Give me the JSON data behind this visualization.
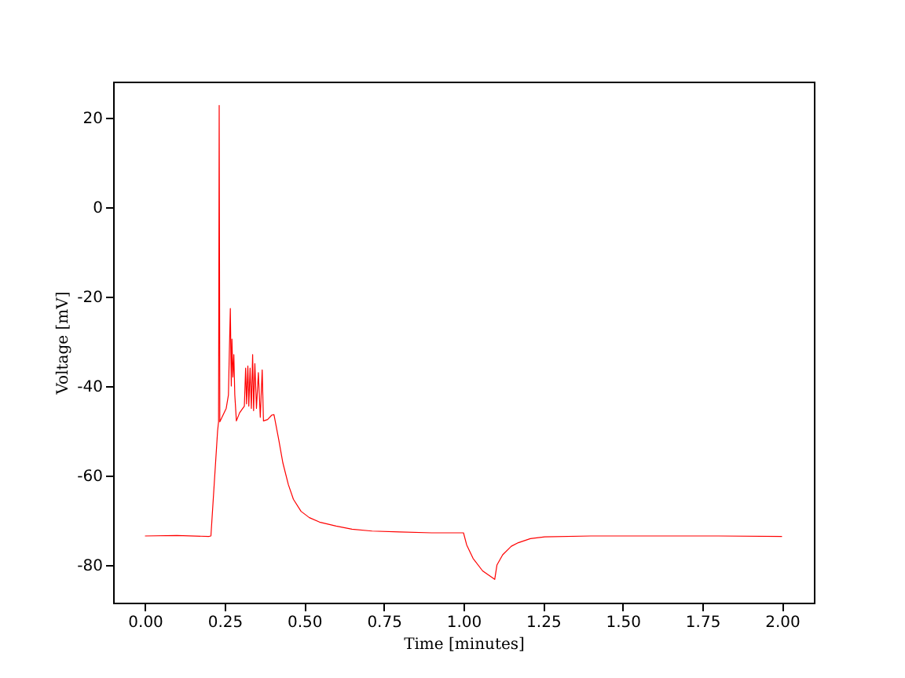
{
  "chart_data": {
    "type": "line",
    "xlabel": "Time [minutes]",
    "ylabel": "Voltage [mV]",
    "x": [
      0,
      0.1,
      0.2,
      0.207,
      0.228,
      0.231,
      0.233,
      0.235,
      0.245,
      0.255,
      0.262,
      0.265,
      0.268,
      0.271,
      0.273,
      0.276,
      0.279,
      0.282,
      0.287,
      0.297,
      0.307,
      0.312,
      0.316,
      0.319,
      0.323,
      0.326,
      0.33,
      0.334,
      0.338,
      0.341,
      0.345,
      0.35,
      0.356,
      0.362,
      0.368,
      0.372,
      0.385,
      0.398,
      0.405,
      0.42,
      0.433,
      0.45,
      0.466,
      0.49,
      0.516,
      0.548,
      0.6,
      0.65,
      0.713,
      0.8,
      0.9,
      1.0,
      1.01,
      1.03,
      1.06,
      1.098,
      1.105,
      1.123,
      1.15,
      1.172,
      1.21,
      1.255,
      1.4,
      1.6,
      1.8,
      2.0
    ],
    "series": [
      {
        "color": "#ff0000",
        "values": [
          -73.5,
          -73.4,
          -73.6,
          -73.5,
          -50,
          -48,
          22.7,
          -48,
          -46.5,
          -45,
          -42,
          -32,
          -22.7,
          -40,
          -29.5,
          -38,
          -33,
          -42,
          -47.8,
          -46,
          -45,
          -44.5,
          -36,
          -44,
          -35.5,
          -44.5,
          -36,
          -45,
          -33,
          -45.5,
          -35,
          -45,
          -37,
          -47,
          -36.4,
          -47.8,
          -47.5,
          -46.5,
          -46.4,
          -52,
          -57.2,
          -62,
          -65.3,
          -68,
          -69.4,
          -70.4,
          -71.3,
          -72,
          -72.4,
          -72.6,
          -72.8,
          -72.8,
          -75.5,
          -78.5,
          -81.3,
          -83.2,
          -80,
          -77.7,
          -75.8,
          -75,
          -74.1,
          -73.7,
          -73.5,
          -73.5,
          -73.5,
          -73.6
        ]
      }
    ],
    "xlim": [
      -0.1,
      2.1
    ],
    "ylim": [
      -88.4,
      28
    ],
    "xticks": [
      {
        "value": 0,
        "label": "0.00"
      },
      {
        "value": 0.25,
        "label": "0.25"
      },
      {
        "value": 0.5,
        "label": "0.50"
      },
      {
        "value": 0.75,
        "label": "0.75"
      },
      {
        "value": 1,
        "label": "1.00"
      },
      {
        "value": 1.25,
        "label": "1.25"
      },
      {
        "value": 1.5,
        "label": "1.50"
      },
      {
        "value": 1.75,
        "label": "1.75"
      },
      {
        "value": 2,
        "label": "2.00"
      }
    ],
    "yticks": [
      -80,
      -60,
      -40,
      -20,
      0,
      20
    ],
    "grid": false,
    "legend": false,
    "marker": "none",
    "line_style": "solid"
  }
}
